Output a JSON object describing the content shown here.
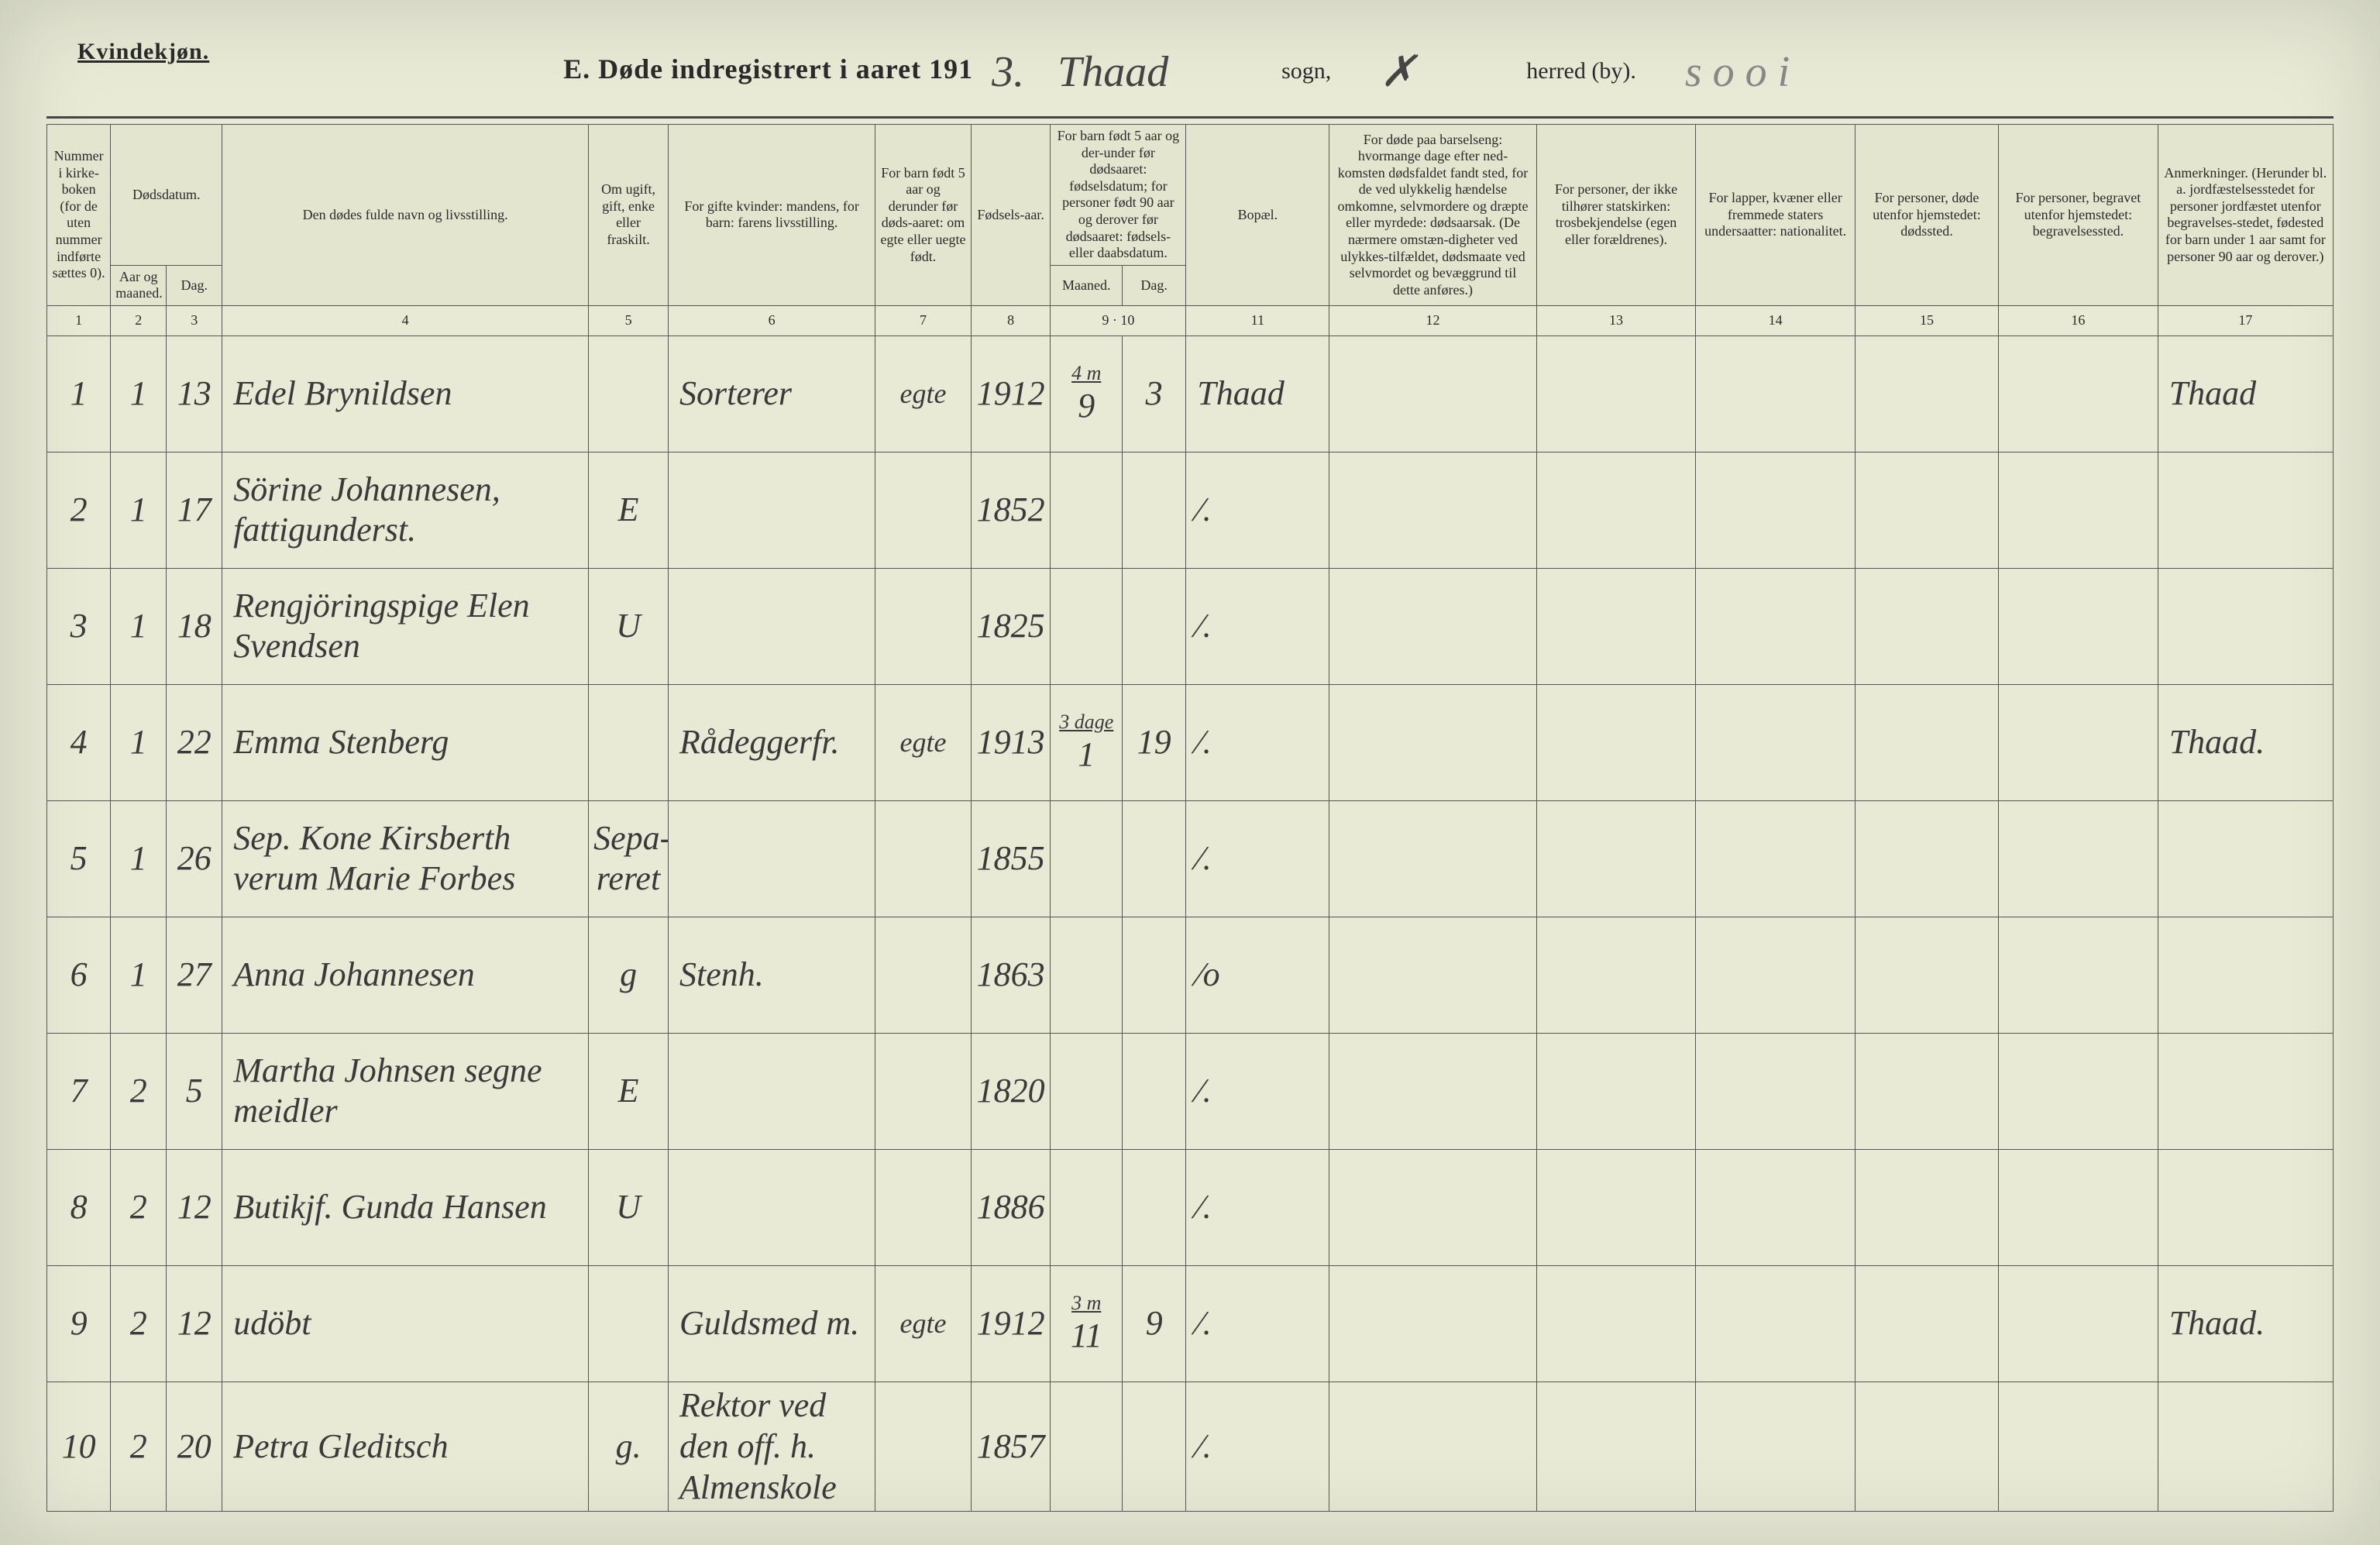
{
  "page": {
    "gender_label": "Kvindekjøn.",
    "title_prefix": "E.  Døde indregistrert i aaret 191",
    "year_suffix": "3.",
    "sogn_value": "Thaad",
    "sogn_label": "sogn,",
    "herred_value": "✗",
    "herred_label": "herred (by).",
    "right_annotation": "s o o i"
  },
  "headers": {
    "c1": "Nummer i kirke-boken (for de uten nummer indførte sættes 0).",
    "c2_top": "Dødsdatum.",
    "c2": "Aar og maaned.",
    "c3": "Dag.",
    "c4": "Den dødes fulde navn og livsstilling.",
    "c5": "Om ugift, gift, enke eller fraskilt.",
    "c6": "For gifte kvinder: mandens, for barn: farens livsstilling.",
    "c7": "For barn født 5 aar og derunder før døds-aaret: om egte eller uegte født.",
    "c8": "Fødsels-aar.",
    "c9_top": "For barn født 5 aar og der-under før dødsaaret: fødselsdatum; for personer født 90 aar og derover før dødsaaret: fødsels- eller daabsdatum.",
    "c9": "Maaned.",
    "c10": "Dag.",
    "c11": "Bopæl.",
    "c12": "For døde paa barselseng: hvormange dage efter ned-komsten dødsfaldet fandt sted, for de ved ulykkelig hændelse omkomne, selvmordere og dræpte eller myrdede: dødsaarsak. (De nærmere omstæn-digheter ved ulykkes-tilfældet, dødsmaate ved selvmordet og bevæggrund til dette anføres.)",
    "c13": "For personer, der ikke tilhører statskirken: trosbekjendelse (egen eller forældrenes).",
    "c14": "For lapper, kvæner eller fremmede staters undersaatter: nationalitet.",
    "c15": "For personer, døde utenfor hjemstedet: dødssted.",
    "c16": "For personer, begravet utenfor hjemstedet: begravelsessted.",
    "c17": "Anmerkninger. (Herunder bl. a. jordfæstelsesstedet for personer jordfæstet utenfor begravelses-stedet, fødested for barn under 1 aar samt for personer 90 aar og derover.)"
  },
  "colnums": [
    "1",
    "2",
    "3",
    "4",
    "5",
    "6",
    "7",
    "8",
    "9",
    "10",
    "11",
    "12",
    "13",
    "14",
    "15",
    "16",
    "17"
  ],
  "rows": [
    {
      "n": "1",
      "m": "1",
      "d": "13",
      "name": "Edel Brynildsen",
      "status": "",
      "occ": "Sorterer",
      "leg": "egte",
      "year": "1912",
      "mm_annot": "4 m",
      "mm": "9",
      "dd": "3",
      "place": "Thaad",
      "c17": "Thaad"
    },
    {
      "n": "2",
      "m": "1",
      "d": "17",
      "name": "Sörine Johannesen, fattigunderst.",
      "status": "E",
      "occ": "",
      "leg": "",
      "year": "1852",
      "mm": "",
      "dd": "",
      "place": "⁄.",
      "c17": ""
    },
    {
      "n": "3",
      "m": "1",
      "d": "18",
      "name": "Rengjöringspige Elen Svendsen",
      "status": "U",
      "occ": "",
      "leg": "",
      "year": "1825",
      "mm": "",
      "dd": "",
      "place": "⁄.",
      "c17": ""
    },
    {
      "n": "4",
      "m": "1",
      "d": "22",
      "name": "Emma Stenberg",
      "status": "",
      "occ": "Rådeggerfr.",
      "leg": "egte",
      "year": "1913",
      "mm_annot": "3 dage",
      "mm": "1",
      "dd": "19",
      "place": "⁄.",
      "c17": "Thaad."
    },
    {
      "n": "5",
      "m": "1",
      "d": "26",
      "name": "Sep. Kone Kirsberth verum Marie Forbes",
      "status": "Sepa-reret",
      "occ": "",
      "leg": "",
      "year": "1855",
      "mm": "",
      "dd": "",
      "place": "⁄.",
      "c17": ""
    },
    {
      "n": "6",
      "m": "1",
      "d": "27",
      "name": "Anna Johannesen",
      "status": "g",
      "occ": "Stenh.",
      "leg": "",
      "year": "1863",
      "mm": "",
      "dd": "",
      "place": "⁄o",
      "c17": ""
    },
    {
      "n": "7",
      "m": "2",
      "d": "5",
      "name": "Martha Johnsen segne meidler",
      "status": "E",
      "occ": "",
      "leg": "",
      "year": "1820",
      "mm": "",
      "dd": "",
      "place": "⁄.",
      "c17": ""
    },
    {
      "n": "8",
      "m": "2",
      "d": "12",
      "name": "Butikjf. Gunda Hansen",
      "status": "U",
      "occ": "",
      "leg": "",
      "year": "1886",
      "mm": "",
      "dd": "",
      "place": "⁄.",
      "c17": ""
    },
    {
      "n": "9",
      "m": "2",
      "d": "12",
      "name": "udöbt",
      "status": "",
      "occ": "Guldsmed m.",
      "leg": "egte",
      "year": "1912",
      "mm_annot": "3 m",
      "mm": "11",
      "dd": "9",
      "place": "⁄.",
      "c17": "Thaad."
    },
    {
      "n": "10",
      "m": "2",
      "d": "20",
      "name": "Petra Gleditsch",
      "status": "g.",
      "occ": "Rektor ved den off. h. Almenskole",
      "leg": "",
      "year": "1857",
      "mm": "",
      "dd": "",
      "place": "⁄.",
      "c17": ""
    }
  ]
}
